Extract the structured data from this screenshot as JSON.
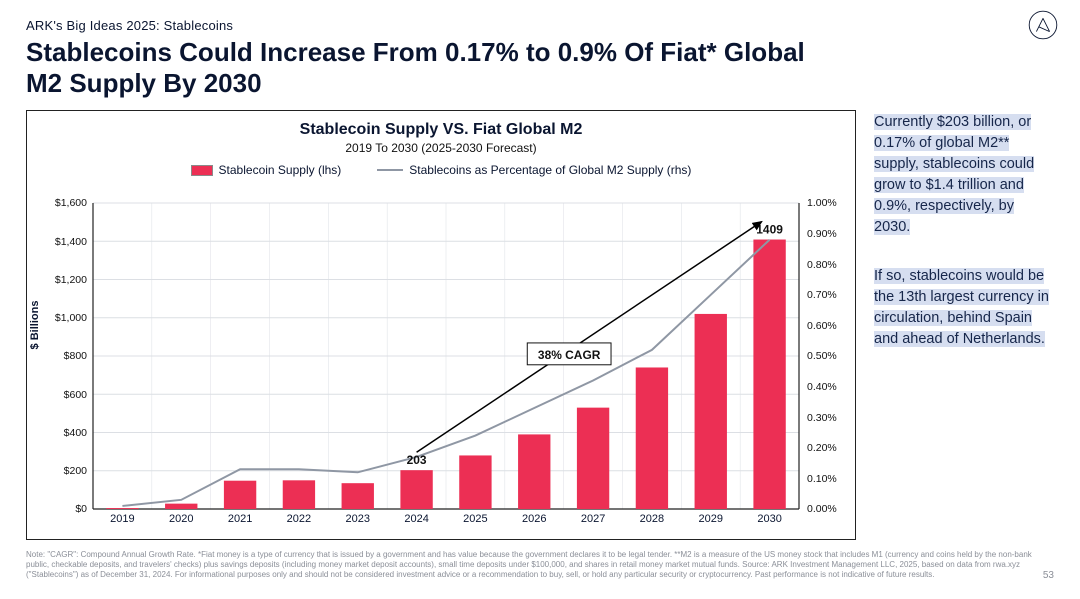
{
  "eyebrow": "ARK's Big Ideas 2025: Stablecoins",
  "headline": "Stablecoins Could Increase From 0.17% to 0.9% Of Fiat* Global M2 Supply By 2030",
  "pageNumber": "53",
  "rightCallouts": [
    "Currently $203 billion, or 0.17% of global M2** supply, stablecoins could grow to $1.4 trillion and 0.9%, respectively, by 2030.",
    "If so, stablecoins would be the 13th largest currency in circulation, behind Spain and ahead of Netherlands."
  ],
  "footnote": "Note: \"CAGR\": Compound Annual Growth Rate. *Fiat money is a type of currency that is issued by a government and has value because the government declares it to be legal tender. **M2 is a measure of the US money stock that includes M1 (currency and coins held by the non-bank public, checkable deposits, and travelers' checks) plus savings deposits (including money market deposit accounts), small time deposits under $100,000, and shares in retail money market mutual funds. Source: ARK Investment Management LLC, 2025, based on data from rwa.xyz (\"Stablecoins\") as of December 31, 2024. For informational purposes only and should not be considered investment advice or a recommendation to buy, sell, or hold any particular security or cryptocurrency. Past performance is not indicative of future results.",
  "chart": {
    "title": "Stablecoin Supply VS. Fiat Global M2",
    "subtitle": "2019 To 2030 (2025-2030 Forecast)",
    "legend": {
      "bars": "Stablecoin Supply (lhs)",
      "line": "Stablecoins as Percentage of Global M2 Supply (rhs)"
    },
    "yAxisLabel": "$ Billions",
    "yLeft": {
      "min": 0,
      "max": 1600,
      "step": 200,
      "prefix": "$",
      "format": "comma"
    },
    "yRight": {
      "min": 0,
      "max": 1.0,
      "step": 0.1,
      "suffix": "%",
      "decimals": 2
    },
    "categories": [
      "2019",
      "2020",
      "2021",
      "2022",
      "2023",
      "2024",
      "2025",
      "2026",
      "2027",
      "2028",
      "2029",
      "2030"
    ],
    "bars": [
      5,
      28,
      148,
      150,
      135,
      203,
      280,
      390,
      530,
      740,
      1020,
      1409
    ],
    "line": [
      0.01,
      0.03,
      0.13,
      0.13,
      0.12,
      0.17,
      0.24,
      0.33,
      0.42,
      0.52,
      0.7,
      0.88
    ],
    "annotations": {
      "endValueLabel": "1409",
      "startPointLabel": "203",
      "cagrLabel": "38% CAGR"
    },
    "style": {
      "barColor": "#ec2f54",
      "lineColor": "#8f97a4",
      "axisColor": "#222222",
      "gridColor": "#dcdfe4",
      "swatchOutline": "#8a8a8a",
      "highlightBg": "#d6def0",
      "barWidthFrac": 0.55,
      "lineWidth": 2,
      "arrowColor": "#000000"
    }
  }
}
